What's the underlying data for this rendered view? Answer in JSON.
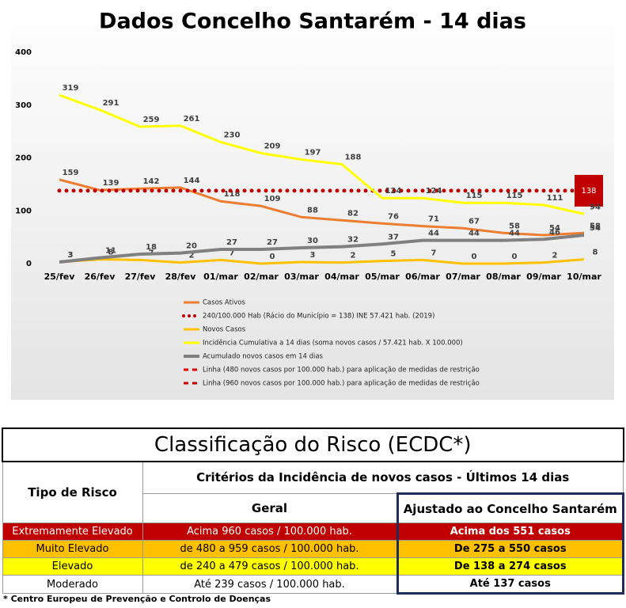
{
  "chart_data": {
    "type": "line",
    "title": "Dados Concelho Santarém - 14 dias",
    "categories": [
      "25/fev",
      "26/fev",
      "27/fev",
      "28/fev",
      "01/mar",
      "02/mar",
      "03/mar",
      "04/mar",
      "05/mar",
      "06/mar",
      "07/mar",
      "08/mar",
      "09/mar",
      "10/mar"
    ],
    "ylim": [
      0,
      400
    ],
    "yticks": [
      0,
      100,
      200,
      300,
      400
    ],
    "grid": false,
    "series": [
      {
        "name": "Casos Ativos",
        "color": "#ed7d31",
        "style": "solid",
        "data_labels": "all",
        "values": [
          159,
          139,
          142,
          144,
          118,
          109,
          88,
          82,
          76,
          71,
          67,
          58,
          54,
          58
        ]
      },
      {
        "name": "240/100.000 Hab (Rácio do Município = 138) INE 57.421 hab. (2019)",
        "color": "#c00000",
        "style": "dotted",
        "data_labels": "last",
        "values": [
          138,
          138,
          138,
          138,
          138,
          138,
          138,
          138,
          138,
          138,
          138,
          138,
          138,
          138
        ]
      },
      {
        "name": "Novos Casos",
        "color": "#ffc000",
        "style": "solid",
        "data_labels": "all",
        "values": [
          3,
          8,
          7,
          2,
          7,
          0,
          3,
          2,
          5,
          7,
          0,
          0,
          2,
          8
        ]
      },
      {
        "name": "Incidência Cumulativa a 14 dias (soma novos casos / 57.421 hab. X 100.000)",
        "color": "#ffff00",
        "style": "solid",
        "data_labels": "all",
        "values": [
          319,
          291,
          259,
          261,
          230,
          209,
          197,
          188,
          124,
          124,
          115,
          115,
          111,
          94
        ]
      },
      {
        "name": "Acumulado novos casos em 14 dias",
        "color": "#808080",
        "style": "solid",
        "data_labels": "all",
        "values": [
          3,
          11,
          18,
          20,
          27,
          27,
          30,
          32,
          37,
          44,
          44,
          44,
          46,
          54
        ]
      },
      {
        "name": "Linha (480 novos casos por 100.000 hab.) para aplicação de medidas de restrição",
        "color": "#e00000",
        "style": "dashed",
        "data_labels": "none",
        "values": [
          null,
          null,
          null,
          null,
          null,
          null,
          null,
          null,
          null,
          null,
          null,
          null,
          null,
          null
        ]
      },
      {
        "name": "Linha (960 novos casos por 100.000 hab.) para aplicação de medidas de restrição",
        "color": "#c00000",
        "style": "dashed",
        "data_labels": "none",
        "values": [
          null,
          null,
          null,
          null,
          null,
          null,
          null,
          null,
          null,
          null,
          null,
          null,
          null,
          null
        ]
      }
    ]
  },
  "table": {
    "title": "Classificação do Risco (ECDC*)",
    "header": {
      "risk_type": "Tipo de Risco",
      "criteria": "Critérios da Incidência de novos casos - Últimos 14 dias",
      "general": "Geral",
      "adjusted": "Ajustado ao Concelho Santarém"
    },
    "rows": [
      [
        "Extremamente Elevado",
        "Acima 960 casos / 100.000 hab.",
        "Acima dos 551 casos"
      ],
      [
        "Muito Elevado",
        "de 480 a 959 casos / 100.000 hab.",
        "De 275 a 550 casos"
      ],
      [
        "Elevado",
        "de 240 a 479 casos / 100.000 hab.",
        "De 138 a 274 casos"
      ],
      [
        "Moderado",
        "Até 239 casos / 100.000 hab.",
        "Até 137 casos"
      ]
    ],
    "footnote": "* Centro Europeu de Prevenção e Controlo de Doenças"
  }
}
